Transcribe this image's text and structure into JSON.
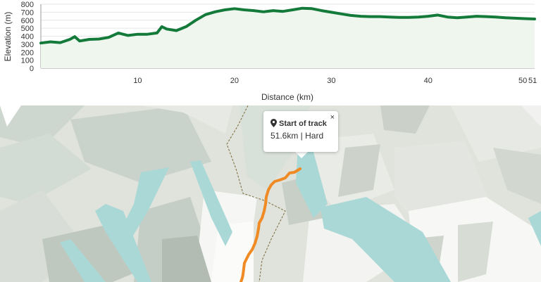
{
  "chart_data": {
    "type": "area",
    "ylabel": "Elevation (m)",
    "xlabel": "Distance (km)",
    "ylim": [
      0,
      800
    ],
    "xlim": [
      0,
      51
    ],
    "yticks": [
      "0",
      "100",
      "200",
      "300",
      "400",
      "500",
      "600",
      "700",
      "800"
    ],
    "xticks": [
      {
        "value": 10,
        "label": "10"
      },
      {
        "value": 20,
        "label": "20"
      },
      {
        "value": 30,
        "label": "30"
      },
      {
        "value": 40,
        "label": "40"
      },
      {
        "value": 50,
        "label": "50"
      },
      {
        "value": 51,
        "label": "51"
      }
    ],
    "grid": "horizontal",
    "line_color": "#137a3a",
    "fill_color": "#eef6ee",
    "x": [
      0,
      1,
      2,
      3,
      3.5,
      4,
      5,
      6,
      7,
      8,
      9,
      10,
      11,
      12,
      12.5,
      13,
      14,
      15,
      16,
      17,
      18,
      19,
      20,
      21,
      22,
      23,
      24,
      25,
      26,
      27,
      28,
      29,
      30,
      31,
      32,
      33,
      34,
      35,
      36,
      37,
      38,
      39,
      40,
      41,
      42,
      43,
      44,
      45,
      46,
      47,
      48,
      49,
      50,
      51
    ],
    "values": [
      315,
      330,
      320,
      360,
      395,
      340,
      360,
      365,
      385,
      440,
      410,
      425,
      425,
      440,
      520,
      490,
      470,
      520,
      600,
      670,
      705,
      730,
      745,
      730,
      720,
      705,
      720,
      710,
      730,
      750,
      745,
      720,
      700,
      680,
      660,
      650,
      645,
      645,
      640,
      635,
      635,
      640,
      650,
      665,
      640,
      630,
      640,
      650,
      645,
      640,
      630,
      625,
      620,
      615
    ]
  },
  "popup": {
    "title": "Start of track",
    "subtitle": "51.6km | Hard",
    "close": "×",
    "icon": "map-pin-icon"
  },
  "map": {
    "track_color": "#f08a24",
    "water_color": "#aad8d6",
    "land_color": "#dfe3dc",
    "boundary_color": "#7a6a3a"
  }
}
